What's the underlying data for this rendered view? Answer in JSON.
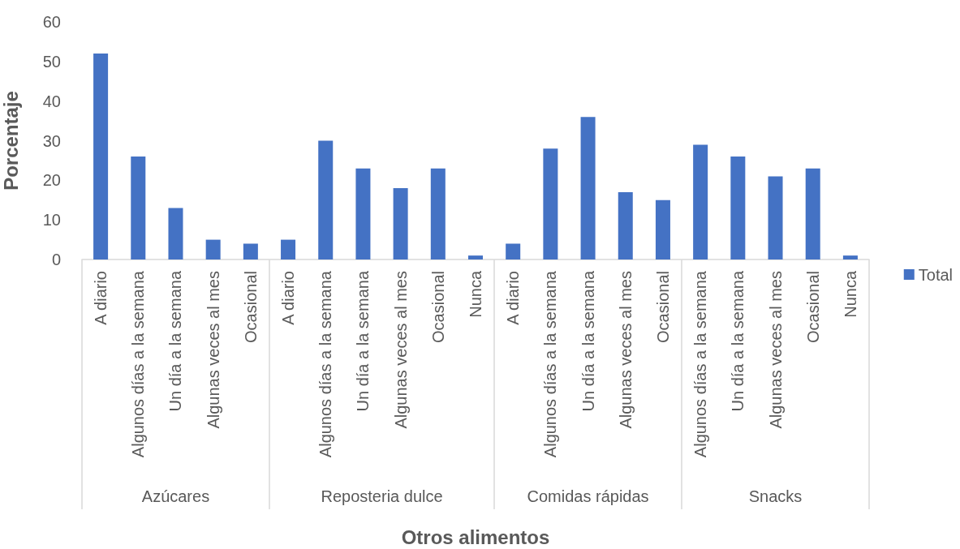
{
  "chart_data": {
    "type": "bar",
    "xlabel": "Otros alimentos",
    "ylabel": "Porcentaje",
    "categories": [
      "A diario",
      "Algunos días a la semana",
      "Un día a la semana",
      "Algunas veces al mes",
      "Ocasional",
      "A diario",
      "Algunos días a la semana",
      "Un día a la semana",
      "Algunas veces al mes",
      "Ocasional",
      "Nunca",
      "A diario",
      "Algunos días a la semana",
      "Un día a la semana",
      "Algunas veces al mes",
      "Ocasional",
      "Algunos días a la semana",
      "Un día a la semana",
      "Algunas veces al mes",
      "Ocasional",
      "Nunca"
    ],
    "series": [
      {
        "name": "Total",
        "color": "#4472c4",
        "values": [
          52,
          26,
          13,
          5,
          4,
          5,
          30,
          23,
          18,
          23,
          1,
          4,
          28,
          36,
          17,
          15,
          29,
          26,
          21,
          23,
          1
        ]
      }
    ],
    "annotations": [
      "Azúcares",
      "Reposteria dulce",
      "Comidas rápidas",
      "Snacks"
    ],
    "ylim": [
      0,
      60
    ],
    "yticks": [
      0,
      10,
      20,
      30,
      40,
      50,
      60
    ],
    "legend": "right"
  }
}
